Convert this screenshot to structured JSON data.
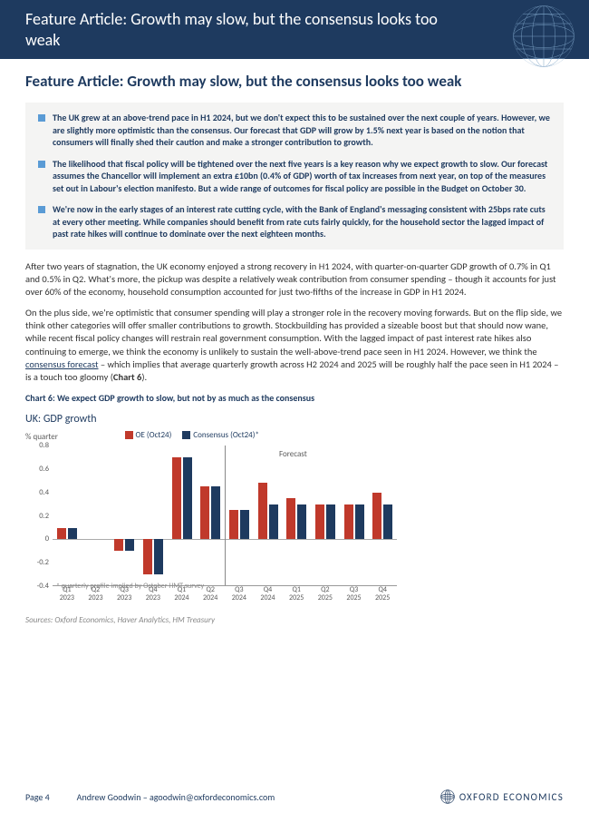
{
  "header": {
    "title": "Feature Article: Growth may slow, but the consensus looks too weak"
  },
  "article": {
    "title": "Feature Article: Growth may slow, but the consensus looks too weak"
  },
  "bullets": [
    "The UK grew at an above-trend pace in H1 2024, but we don't expect this to be sustained over the next couple of years. However, we are slightly more optimistic than the consensus. Our forecast that GDP will grow by 1.5% next year is based on the notion that consumers will finally shed their caution and make a stronger contribution to growth.",
    "The likelihood that fiscal policy will be tightened over the next five years is a key reason why we expect growth to slow. Our forecast assumes the Chancellor will implement an extra £10bn (0.4% of GDP) worth of tax increases from next year, on top of the measures set out in Labour's election manifesto. But a wide range of outcomes for fiscal policy are possible in the Budget on October 30.",
    "We're now in the early stages of an interest rate cutting cycle, with the Bank of England's messaging consistent with 25bps rate cuts at every other meeting. While companies should benefit from rate cuts fairly quickly, for the household sector the lagged impact of past rate hikes will continue to dominate over the next eighteen months."
  ],
  "paragraphs": {
    "p1": "After two years of stagnation, the UK economy enjoyed a strong recovery in H1 2024, with quarter-on-quarter GDP growth of 0.7% in Q1 and 0.5% in Q2. What's more, the pickup was despite a relatively weak contribution from consumer spending – though it accounts for just over 60% of the economy, household consumption accounted for just two-fifths of the increase in GDP in H1 2024.",
    "p2a": "On the plus side, we're optimistic that consumer spending will play a stronger role in the recovery moving forwards. But on the flip side, we think other categories will offer smaller contributions to growth. Stockbuilding has provided a sizeable boost but that should now wane, while recent fiscal policy changes will restrain real government consumption. With the lagged impact of past interest rate hikes also continuing to emerge, we think the economy is unlikely to sustain the well-above-trend pace seen in H1 2024. However, we think the ",
    "p2link": "consensus forecast",
    "p2b": " – which implies that average quarterly growth across H2 2024 and 2025 will be roughly half the pace seen in H1 2024 – is a touch too gloomy (",
    "p2c": "Chart 6",
    "p2d": ")."
  },
  "chart": {
    "title": "Chart 6: We expect GDP growth to slow, but not by as much as the consensus",
    "subtitle": "UK: GDP growth",
    "unit": "% quarter",
    "legend": {
      "oe": "OE (Oct24)",
      "cons": "Consensus (Oct24)*"
    },
    "forecast_label": "Forecast",
    "note": "* quarterly profile implied by October HMT survey",
    "colors": {
      "oe": "#c0392b",
      "cons": "#1e3a5f",
      "grid": "#aaaaaa",
      "text": "#5a5a5a"
    },
    "ylim": [
      -0.4,
      0.8
    ],
    "yticks": [
      -0.4,
      -0.2,
      0,
      0.2,
      0.4,
      0.6,
      0.8
    ],
    "categories": [
      "Q1 2023",
      "Q2 2023",
      "Q3 2023",
      "Q4 2023",
      "Q1 2024",
      "Q2 2024",
      "Q3 2024",
      "Q4 2024",
      "Q1 2025",
      "Q2 2025",
      "Q3 2025",
      "Q4 2025"
    ],
    "oe": [
      0.1,
      0.0,
      -0.1,
      -0.3,
      0.7,
      0.45,
      0.25,
      0.48,
      0.35,
      0.3,
      0.3,
      0.4
    ],
    "cons": [
      0.1,
      0.0,
      -0.1,
      -0.3,
      0.7,
      0.45,
      0.25,
      0.3,
      0.3,
      0.3,
      0.3,
      0.3
    ],
    "forecast_divider_index": 6
  },
  "sources": "Sources: Oxford Economics, Haver Analytics, HM Treasury",
  "footer": {
    "page": "Page 4",
    "author": "Andrew Goodwin – agoodwin@oxfordeconomics.com",
    "logo": "OXFORD ECONOMICS"
  }
}
